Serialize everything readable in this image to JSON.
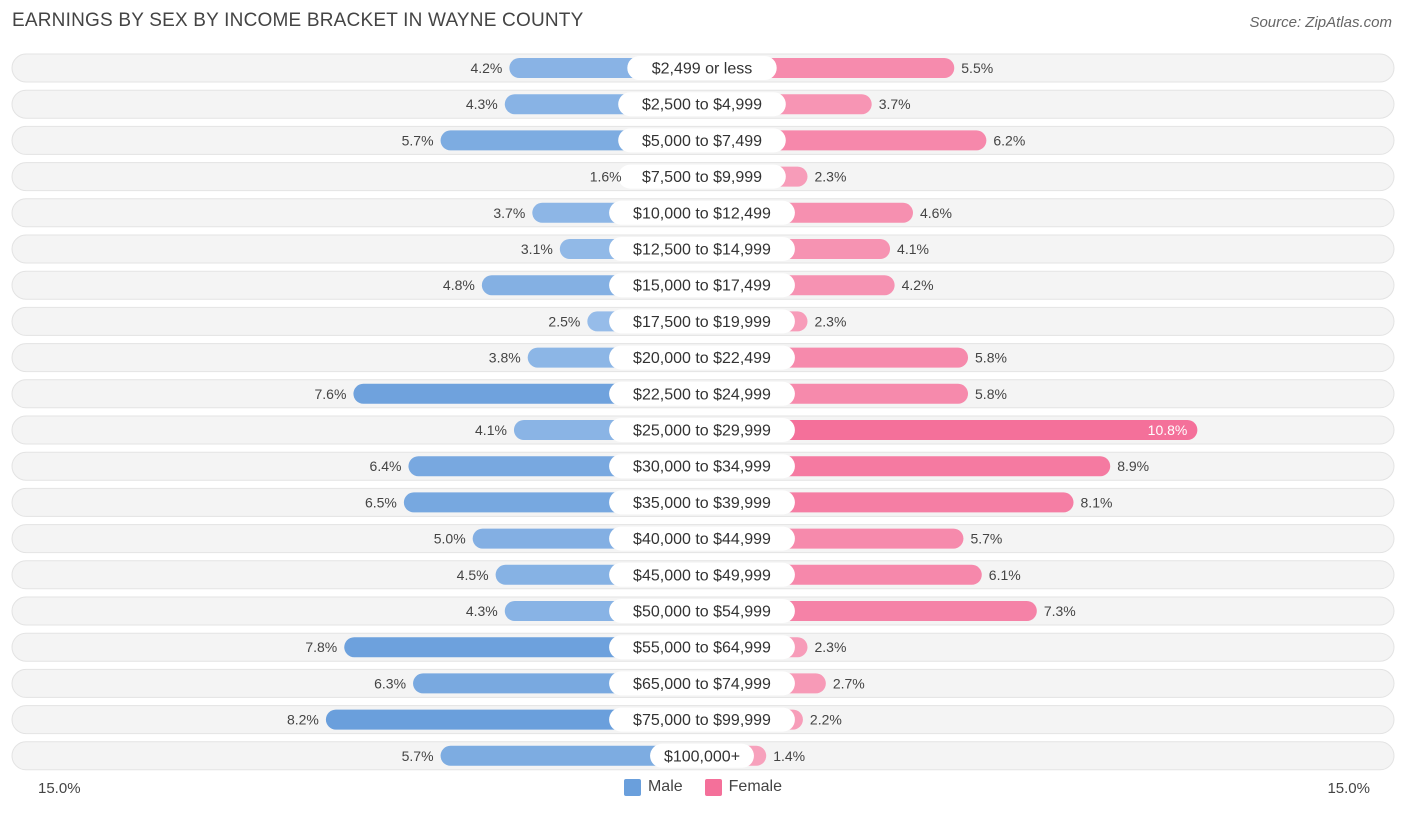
{
  "title": "EARNINGS BY SEX BY INCOME BRACKET IN WAYNE COUNTY",
  "source": "Source: ZipAtlas.com",
  "colors": {
    "male": "#6a9fdc",
    "male_light": "#a9c9ee",
    "female": "#f4709a",
    "female_light": "#f8a8c1",
    "row_bg": "#efefef"
  },
  "legend": {
    "male": "Male",
    "female": "Female"
  },
  "axis": {
    "left_label": "15.0%",
    "right_label": "15.0%"
  },
  "chart_data": {
    "type": "bar",
    "orientation": "horizontal-diverging",
    "title": "EARNINGS BY SEX BY INCOME BRACKET IN WAYNE COUNTY",
    "xlim": [
      -15.0,
      15.0
    ],
    "unit": "%",
    "categories": [
      "$2,499 or less",
      "$2,500 to $4,999",
      "$5,000 to $7,499",
      "$7,500 to $9,999",
      "$10,000 to $12,499",
      "$12,500 to $14,999",
      "$15,000 to $17,499",
      "$17,500 to $19,999",
      "$20,000 to $22,499",
      "$22,500 to $24,999",
      "$25,000 to $29,999",
      "$30,000 to $34,999",
      "$35,000 to $39,999",
      "$40,000 to $44,999",
      "$45,000 to $49,999",
      "$50,000 to $54,999",
      "$55,000 to $64,999",
      "$65,000 to $74,999",
      "$75,000 to $99,999",
      "$100,000+"
    ],
    "series": [
      {
        "name": "Male",
        "values": [
          4.2,
          4.3,
          5.7,
          1.6,
          3.7,
          3.1,
          4.8,
          2.5,
          3.8,
          7.6,
          4.1,
          6.4,
          6.5,
          5.0,
          4.5,
          4.3,
          7.8,
          6.3,
          8.2,
          5.7
        ],
        "labels": [
          "4.2%",
          "4.3%",
          "5.7%",
          "1.6%",
          "3.7%",
          "3.1%",
          "4.8%",
          "2.5%",
          "3.8%",
          "7.6%",
          "4.1%",
          "6.4%",
          "6.5%",
          "5.0%",
          "4.5%",
          "4.3%",
          "7.8%",
          "6.3%",
          "8.2%",
          "5.7%"
        ]
      },
      {
        "name": "Female",
        "values": [
          5.5,
          3.7,
          6.2,
          2.3,
          4.6,
          4.1,
          4.2,
          2.3,
          5.8,
          5.8,
          10.8,
          8.9,
          8.1,
          5.7,
          6.1,
          7.3,
          2.3,
          2.7,
          2.2,
          1.4
        ],
        "labels": [
          "5.5%",
          "3.7%",
          "6.2%",
          "2.3%",
          "4.6%",
          "4.1%",
          "4.2%",
          "2.3%",
          "5.8%",
          "5.8%",
          "10.8%",
          "8.9%",
          "8.1%",
          "5.7%",
          "6.1%",
          "7.3%",
          "2.3%",
          "2.7%",
          "2.2%",
          "1.4%"
        ]
      }
    ],
    "legend_position": "bottom-center"
  }
}
